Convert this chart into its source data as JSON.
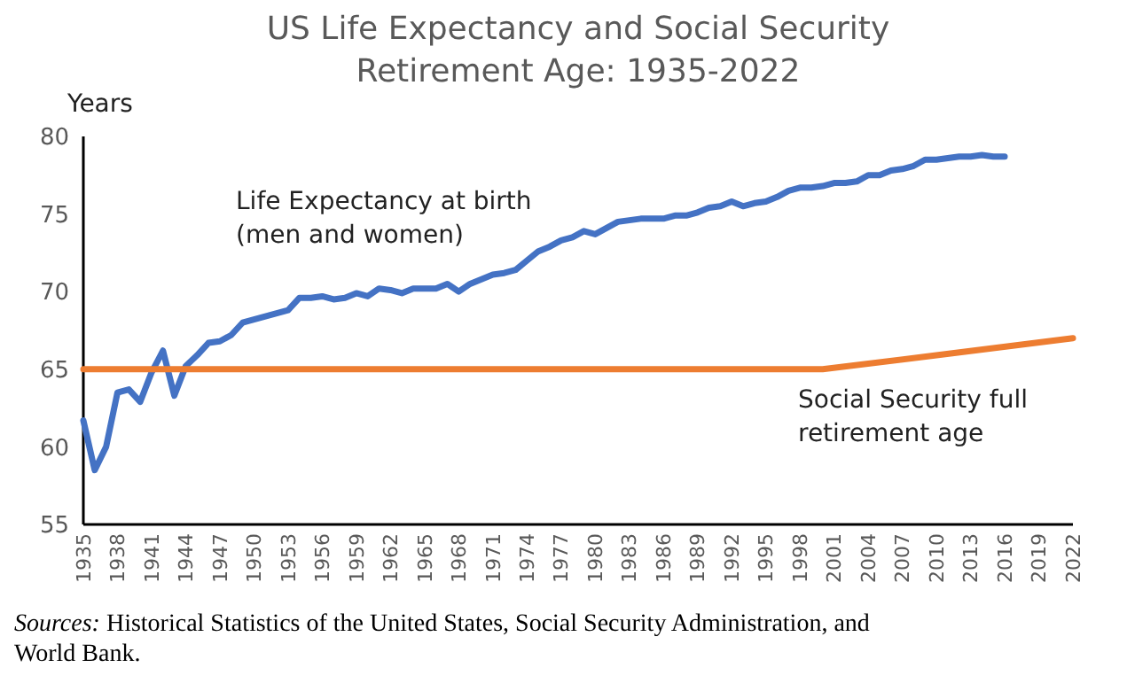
{
  "chart_data": {
    "type": "line",
    "title": "US Life Expectancy and Social Security Retirement Age: 1935-2022",
    "ylabel": "Years",
    "xlim": [
      1935,
      2022
    ],
    "xticks": [
      1935,
      1938,
      1941,
      1944,
      1947,
      1950,
      1953,
      1956,
      1959,
      1962,
      1965,
      1968,
      1971,
      1974,
      1977,
      1980,
      1983,
      1986,
      1989,
      1992,
      1995,
      1998,
      2001,
      2004,
      2007,
      2010,
      2013,
      2016,
      2019,
      2022
    ],
    "ylim": [
      55,
      80
    ],
    "yticks": [
      55,
      60,
      65,
      70,
      75,
      80
    ],
    "grid": false,
    "marker": "none",
    "line_style": "solid",
    "series": [
      {
        "name": "Life Expectancy at birth (men and women)",
        "color": "#4472c4",
        "x": [
          1935,
          1936,
          1937,
          1938,
          1939,
          1940,
          1941,
          1942,
          1943,
          1944,
          1945,
          1946,
          1947,
          1948,
          1949,
          1950,
          1951,
          1952,
          1953,
          1954,
          1955,
          1956,
          1957,
          1958,
          1959,
          1960,
          1961,
          1962,
          1963,
          1964,
          1965,
          1966,
          1967,
          1968,
          1969,
          1970,
          1971,
          1972,
          1973,
          1974,
          1975,
          1976,
          1977,
          1978,
          1979,
          1980,
          1981,
          1982,
          1983,
          1984,
          1985,
          1986,
          1987,
          1988,
          1989,
          1990,
          1991,
          1992,
          1993,
          1994,
          1995,
          1996,
          1997,
          1998,
          1999,
          2000,
          2001,
          2002,
          2003,
          2004,
          2005,
          2006,
          2007,
          2008,
          2009,
          2010,
          2011,
          2012,
          2013,
          2014,
          2015,
          2016
        ],
        "values": [
          61.7,
          58.5,
          60.0,
          63.5,
          63.7,
          62.9,
          64.8,
          66.2,
          63.3,
          65.2,
          65.9,
          66.7,
          66.8,
          67.2,
          68.0,
          68.2,
          68.4,
          68.6,
          68.8,
          69.6,
          69.6,
          69.7,
          69.5,
          69.6,
          69.9,
          69.7,
          70.2,
          70.1,
          69.9,
          70.2,
          70.2,
          70.2,
          70.5,
          70.0,
          70.5,
          70.8,
          71.1,
          71.2,
          71.4,
          72.0,
          72.6,
          72.9,
          73.3,
          73.5,
          73.9,
          73.7,
          74.1,
          74.5,
          74.6,
          74.7,
          74.7,
          74.7,
          74.9,
          74.9,
          75.1,
          75.4,
          75.5,
          75.8,
          75.5,
          75.7,
          75.8,
          76.1,
          76.5,
          76.7,
          76.7,
          76.8,
          77.0,
          77.0,
          77.1,
          77.5,
          77.5,
          77.8,
          77.9,
          78.1,
          78.5,
          78.5,
          78.6,
          78.7,
          78.7,
          78.8,
          78.7,
          78.7
        ]
      },
      {
        "name": "Social Security full retirement age",
        "color": "#ed7d31",
        "x": [
          1935,
          2000,
          2010,
          2022
        ],
        "values": [
          65,
          65,
          65.9,
          67
        ]
      }
    ],
    "annotations": [
      "Sources: Historical Statistics of the United States, Social Security Administration, and World Bank."
    ]
  }
}
